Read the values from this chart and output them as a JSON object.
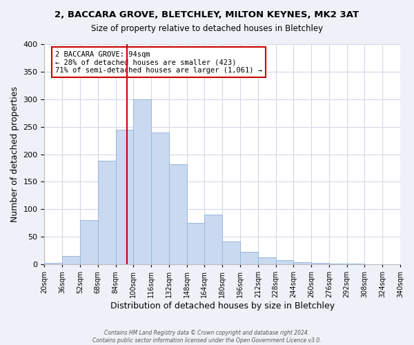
{
  "title": "2, BACCARA GROVE, BLETCHLEY, MILTON KEYNES, MK2 3AT",
  "subtitle": "Size of property relative to detached houses in Bletchley",
  "xlabel": "Distribution of detached houses by size in Bletchley",
  "ylabel": "Number of detached properties",
  "bar_color": "#c8d9f0",
  "bar_edge_color": "#9ab8d8",
  "bins": [
    "20sqm",
    "36sqm",
    "52sqm",
    "68sqm",
    "84sqm",
    "100sqm",
    "116sqm",
    "132sqm",
    "148sqm",
    "164sqm",
    "180sqm",
    "196sqm",
    "212sqm",
    "228sqm",
    "244sqm",
    "260sqm",
    "276sqm",
    "292sqm",
    "308sqm",
    "324sqm",
    "340sqm"
  ],
  "counts": [
    3,
    15,
    80,
    188,
    245,
    300,
    240,
    182,
    75,
    90,
    42,
    22,
    12,
    7,
    4,
    2,
    1,
    1,
    0,
    0
  ],
  "bin_width": 16,
  "bin_start": 20,
  "vline_x": 94,
  "vline_color": "#cc0000",
  "annotation_line1": "2 BACCARA GROVE: 94sqm",
  "annotation_line2": "← 28% of detached houses are smaller (423)",
  "annotation_line3": "71% of semi-detached houses are larger (1,061) →",
  "annotation_box_color": "#ffffff",
  "annotation_box_edge": "#cc0000",
  "footer_line1": "Contains HM Land Registry data © Crown copyright and database right 2024.",
  "footer_line2": "Contains public sector information licensed under the Open Government Licence v3.0.",
  "ylim": [
    0,
    400
  ],
  "xlim_left": 20,
  "xlim_right": 340,
  "background_color": "#eef2f8",
  "plot_bg_color": "#ffffff",
  "grid_color": "#d0d8e8"
}
